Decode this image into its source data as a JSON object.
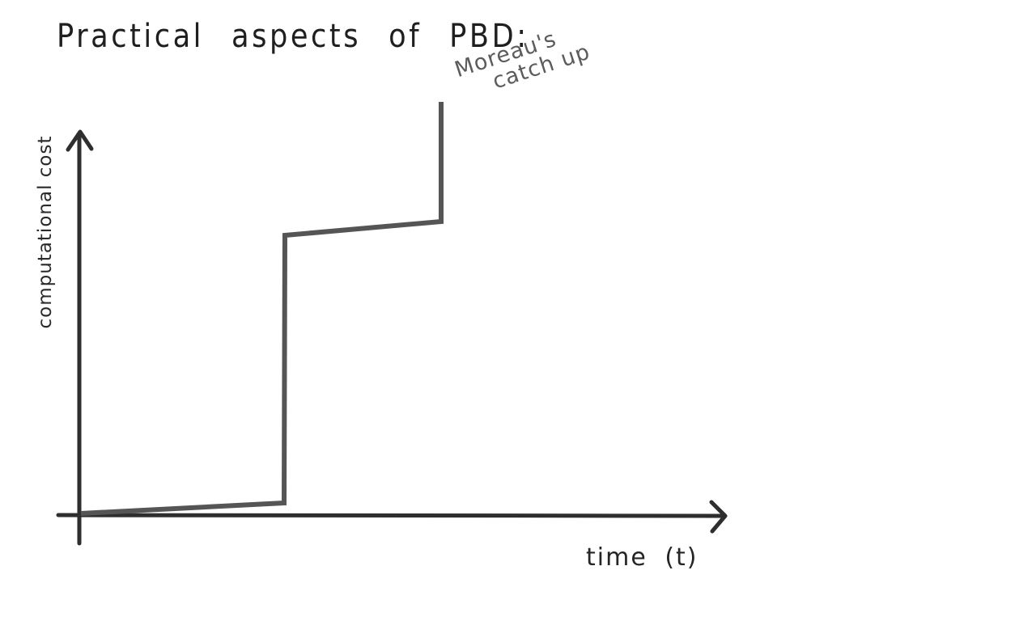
{
  "title": "Practical aspects of PBD:",
  "axes": {
    "y_label": "computational cost",
    "x_label": "time (t)"
  },
  "annotation": {
    "line1": "Moreau's",
    "line2": "catch up"
  },
  "colors": {
    "axis": "#2e2e2e",
    "curve": "#555555",
    "annotation": "#5c5c5c"
  }
}
